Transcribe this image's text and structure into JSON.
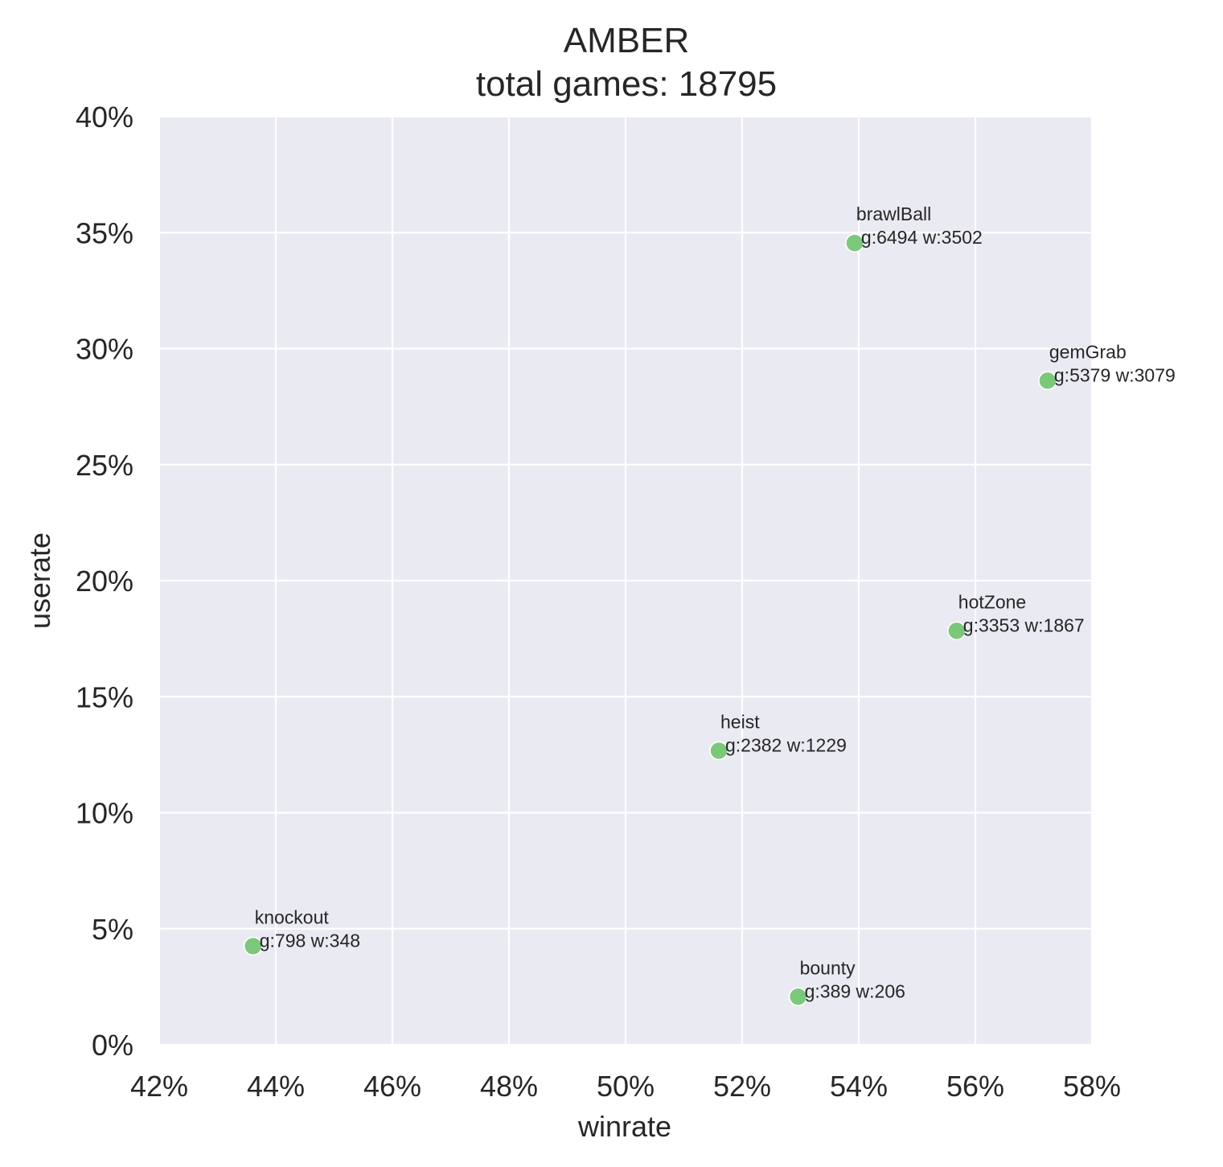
{
  "chart_data": {
    "type": "scatter",
    "title": "AMBER",
    "subtitle": "total games: 18795",
    "xlabel": "winrate",
    "ylabel": "userate",
    "xlim": [
      0.42,
      0.58
    ],
    "ylim": [
      0.0,
      0.4
    ],
    "x_ticks": [
      0.42,
      0.44,
      0.46,
      0.48,
      0.5,
      0.52,
      0.54,
      0.56,
      0.58
    ],
    "x_tick_labels": [
      "42%",
      "44%",
      "46%",
      "48%",
      "50%",
      "52%",
      "54%",
      "56%",
      "58%"
    ],
    "y_ticks": [
      0.0,
      0.05,
      0.1,
      0.15,
      0.2,
      0.25,
      0.3,
      0.35,
      0.4
    ],
    "y_tick_labels": [
      "0%",
      "5%",
      "10%",
      "15%",
      "20%",
      "25%",
      "30%",
      "35%",
      "40%"
    ],
    "grid": true,
    "background_color": "#eaeaf2",
    "grid_color": "#ffffff",
    "point_color": "#7bc87a",
    "points": [
      {
        "mode": "brawlBall",
        "winrate": 0.5393,
        "userate": 0.3455,
        "stats": "g:6494 w:3502"
      },
      {
        "mode": "gemGrab",
        "winrate": 0.5724,
        "userate": 0.2862,
        "stats": "g:5379 w:3079"
      },
      {
        "mode": "hotZone",
        "winrate": 0.5568,
        "userate": 0.1784,
        "stats": "g:3353 w:1867"
      },
      {
        "mode": "heist",
        "winrate": 0.516,
        "userate": 0.1267,
        "stats": "g:2382 w:1229"
      },
      {
        "mode": "knockout",
        "winrate": 0.4361,
        "userate": 0.0425,
        "stats": "g:798 w:348"
      },
      {
        "mode": "bounty",
        "winrate": 0.5296,
        "userate": 0.0207,
        "stats": "g:389 w:206"
      }
    ]
  }
}
